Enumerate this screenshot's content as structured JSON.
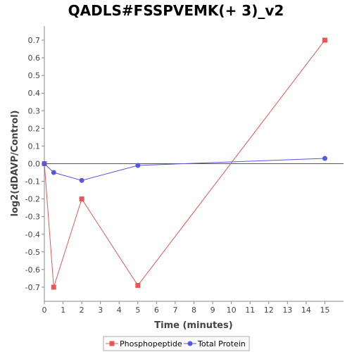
{
  "chart_data": {
    "type": "line",
    "title": "QADLS#FSSPVEMK(+ 3)_v2",
    "xlabel": "Time (minutes)",
    "ylabel": "log2(dDAVP/Control)",
    "xlim": [
      0,
      16
    ],
    "ylim": [
      -0.78,
      0.78
    ],
    "x_ticks": [
      0,
      1,
      2,
      3,
      4,
      5,
      6,
      7,
      8,
      9,
      10,
      11,
      12,
      13,
      14,
      15
    ],
    "y_ticks": [
      -0.7,
      -0.6,
      -0.5,
      -0.4,
      -0.3,
      -0.2,
      -0.1,
      0.0,
      0.1,
      0.2,
      0.3,
      0.4,
      0.5,
      0.6,
      0.7
    ],
    "grid": false,
    "zero_line": true,
    "legend_position": "bottom",
    "series": [
      {
        "name": "Phosphopeptide",
        "color": "#e85656",
        "marker": "square",
        "x": [
          0,
          0.5,
          2,
          5,
          15
        ],
        "y": [
          0.0,
          -0.7,
          -0.2,
          -0.69,
          0.7
        ]
      },
      {
        "name": "Total Protein",
        "color": "#5656e8",
        "marker": "circle",
        "x": [
          0,
          0.5,
          2,
          5,
          15
        ],
        "y": [
          0.0,
          -0.05,
          -0.095,
          -0.01,
          0.03
        ]
      }
    ]
  }
}
